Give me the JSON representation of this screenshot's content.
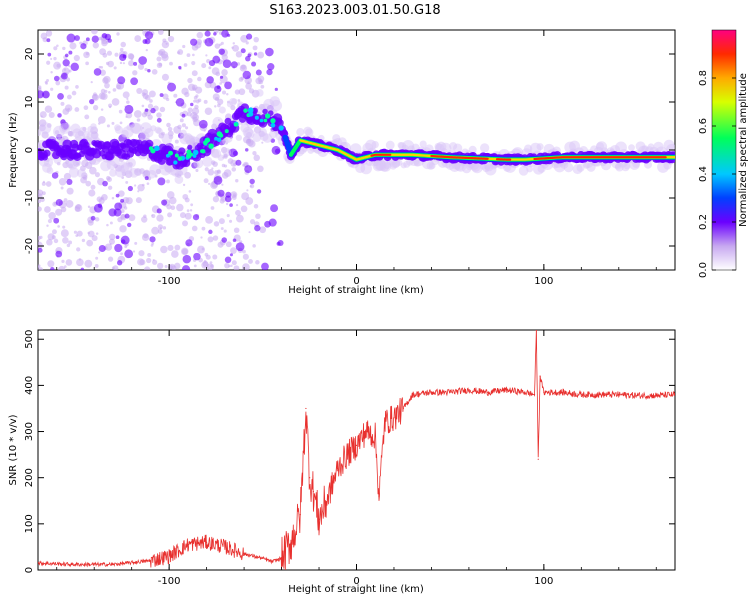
{
  "title": "S163.2023.003.01.50.G18",
  "chart_data": [
    {
      "type": "heatmap",
      "xlabel": "Height of straight line (km)",
      "ylabel": "Frequency (Hz)",
      "xlim": [
        -170,
        170
      ],
      "ylim": [
        -25,
        25
      ],
      "xticks": [
        -100,
        0,
        100
      ],
      "yticks": [
        -20,
        -10,
        0,
        10,
        20
      ],
      "colorbar": {
        "label": "Normalized spectral amplitude",
        "range": [
          0,
          1
        ],
        "ticks": [
          0.0,
          0.2,
          0.4,
          0.6,
          0.8
        ]
      },
      "ridge": [
        {
          "x": -170,
          "y": 0
        },
        {
          "x": -140,
          "y": 0
        },
        {
          "x": -110,
          "y": 0
        },
        {
          "x": -95,
          "y": -2
        },
        {
          "x": -80,
          "y": 1
        },
        {
          "x": -70,
          "y": 4
        },
        {
          "x": -60,
          "y": 8
        },
        {
          "x": -50,
          "y": 7
        },
        {
          "x": -40,
          "y": 5
        },
        {
          "x": -35,
          "y": -1
        },
        {
          "x": -30,
          "y": 2
        },
        {
          "x": -20,
          "y": 1
        },
        {
          "x": -10,
          "y": 0
        },
        {
          "x": 0,
          "y": -2
        },
        {
          "x": 10,
          "y": -1
        },
        {
          "x": 30,
          "y": -1
        },
        {
          "x": 50,
          "y": -1.5
        },
        {
          "x": 80,
          "y": -2
        },
        {
          "x": 90,
          "y": -2
        },
        {
          "x": 110,
          "y": -1.5
        },
        {
          "x": 140,
          "y": -1.5
        },
        {
          "x": 170,
          "y": -1.5
        }
      ]
    },
    {
      "type": "line",
      "xlabel": "Height of straight line (km)",
      "ylabel": "SNR (10 * v/v)",
      "xlim": [
        -170,
        170
      ],
      "ylim": [
        0,
        520
      ],
      "xticks": [
        -100,
        0,
        100
      ],
      "yticks": [
        0,
        100,
        200,
        300,
        400,
        500
      ],
      "series": [
        {
          "color": "#e8302e",
          "x": [
            -170,
            -150,
            -130,
            -110,
            -100,
            -90,
            -80,
            -70,
            -60,
            -50,
            -45,
            -40,
            -35,
            -30,
            -27,
            -25,
            -23,
            -20,
            -15,
            -10,
            -5,
            0,
            5,
            10,
            12,
            15,
            20,
            25,
            30,
            40,
            50,
            60,
            70,
            80,
            90,
            95,
            96,
            97,
            98,
            100,
            110,
            120,
            130,
            140,
            150,
            160,
            170
          ],
          "y": [
            15,
            12,
            12,
            20,
            30,
            55,
            60,
            50,
            35,
            25,
            18,
            25,
            60,
            120,
            350,
            200,
            170,
            110,
            160,
            220,
            250,
            270,
            300,
            290,
            160,
            320,
            330,
            350,
            380,
            385,
            385,
            390,
            385,
            390,
            385,
            380,
            520,
            240,
            420,
            385,
            385,
            380,
            380,
            380,
            378,
            378,
            380
          ]
        }
      ]
    }
  ]
}
